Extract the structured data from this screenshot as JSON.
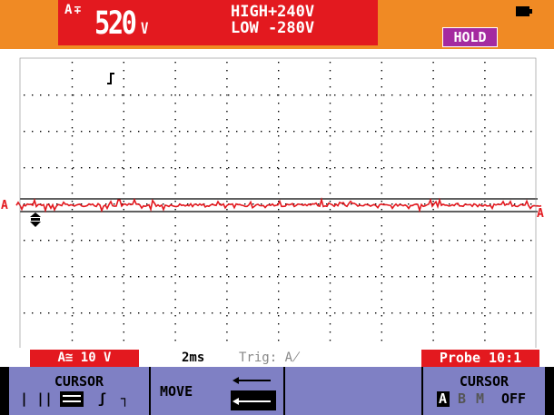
{
  "colors": {
    "header_bg": "#f08a24",
    "reading_bg": "#e3191f",
    "hold_bg": "#a42aa0",
    "softkey_bg": "#7f80c4",
    "trace": "#e3191f"
  },
  "header": {
    "channel": "A",
    "coupling_icon": "ac-dc-coupling-icon",
    "reading_value": "520",
    "reading_unit": "V",
    "high_label": "HIGH+240V",
    "low_label": "LOW -280V",
    "hold": "HOLD",
    "battery_icon": "battery-icon"
  },
  "plot": {
    "channel_marker": "A",
    "trace_end_marker": "A",
    "trigger_icon": "trigger-edge-icon",
    "zero_icon": "ground-arrow-icon"
  },
  "status": {
    "range": "A≅ 10 V",
    "timebase": "2ms",
    "trigger": "Trig: A̸",
    "probe": "Probe 10:1"
  },
  "softkeys": {
    "cursor_left": {
      "label": "CURSOR",
      "options": [
        "|",
        "||",
        "☰",
        "ʃ",
        "┐"
      ]
    },
    "move": {
      "label": "MOVE"
    },
    "cursor_right": {
      "label": "CURSOR",
      "options": [
        "A",
        "B",
        "M",
        "OFF"
      ]
    }
  }
}
